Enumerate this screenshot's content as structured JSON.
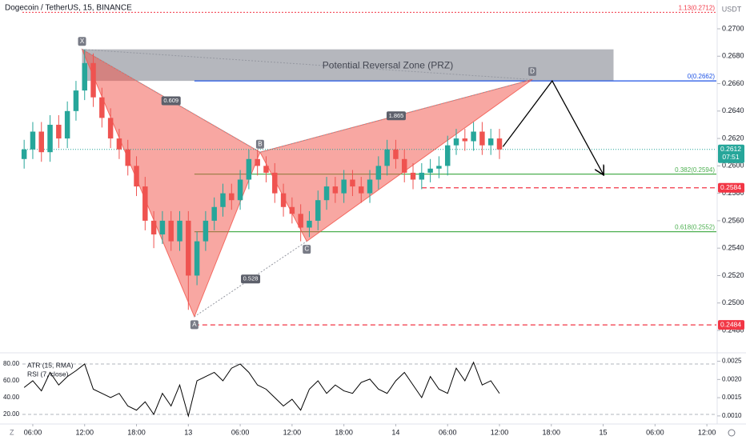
{
  "chart_data": {
    "type": "candlestick",
    "title": "Dogecoin / TetherUS, 15, BINANCE",
    "currency": "USDT",
    "xlim": [
      4.8,
      85.1
    ],
    "ylim": [
      0.2473,
      0.2721
    ],
    "xticks": [
      {
        "value": 6,
        "label": "06:00"
      },
      {
        "value": 12,
        "label": "12:00"
      },
      {
        "value": 18,
        "label": "18:00"
      },
      {
        "value": 24,
        "label": "13"
      },
      {
        "value": 30,
        "label": "06:00"
      },
      {
        "value": 36,
        "label": "12:00"
      },
      {
        "value": 42,
        "label": "18:00"
      },
      {
        "value": 48,
        "label": "14"
      },
      {
        "value": 54,
        "label": "06:00"
      },
      {
        "value": 60,
        "label": "12:00"
      },
      {
        "value": 66,
        "label": "18:00"
      },
      {
        "value": 72,
        "label": "15"
      },
      {
        "value": 78,
        "label": "06:00"
      },
      {
        "value": 84,
        "label": "12:00"
      }
    ],
    "yticks": [
      {
        "value": 0.248,
        "label": "0.2480"
      },
      {
        "value": 0.25,
        "label": "0.2500"
      },
      {
        "value": 0.252,
        "label": "0.2520"
      },
      {
        "value": 0.254,
        "label": "0.2540"
      },
      {
        "value": 0.256,
        "label": "0.2560"
      },
      {
        "value": 0.258,
        "label": "0.2580"
      },
      {
        "value": 0.26,
        "label": "0.2600"
      },
      {
        "value": 0.262,
        "label": "0.2620"
      },
      {
        "value": 0.264,
        "label": "0.2640"
      },
      {
        "value": 0.266,
        "label": "0.2660"
      },
      {
        "value": 0.268,
        "label": "0.2680"
      },
      {
        "value": 0.27,
        "label": "0.2700"
      }
    ],
    "up_color": "#26a69a",
    "down_color": "#ef5350",
    "candles": {
      "x": [
        5,
        6,
        7,
        8,
        9,
        10,
        11,
        12,
        13,
        14,
        15,
        16,
        17,
        18,
        19,
        20,
        21,
        22,
        23,
        24,
        25,
        26,
        27,
        28,
        29,
        30,
        31,
        32,
        33,
        34,
        35,
        36,
        37,
        38,
        39,
        40,
        41,
        42,
        43,
        44,
        45,
        46,
        47,
        48,
        49,
        50,
        51,
        52,
        53,
        54,
        55,
        56,
        57,
        58,
        59,
        60
      ],
      "open": [
        0.2605,
        0.2612,
        0.2625,
        0.261,
        0.263,
        0.262,
        0.264,
        0.2655,
        0.2675,
        0.265,
        0.2635,
        0.262,
        0.2612,
        0.26,
        0.2585,
        0.256,
        0.255,
        0.256,
        0.2545,
        0.256,
        0.252,
        0.2545,
        0.256,
        0.257,
        0.258,
        0.2575,
        0.259,
        0.2605,
        0.26,
        0.2595,
        0.258,
        0.257,
        0.2565,
        0.2555,
        0.256,
        0.2575,
        0.2585,
        0.258,
        0.259,
        0.2585,
        0.258,
        0.259,
        0.26,
        0.2612,
        0.2605,
        0.2595,
        0.259,
        0.2595,
        0.2598,
        0.26,
        0.2615,
        0.262,
        0.2618,
        0.2625,
        0.2615,
        0.262
      ],
      "high": [
        0.2619,
        0.2632,
        0.2632,
        0.2637,
        0.2637,
        0.2647,
        0.2662,
        0.2685,
        0.2682,
        0.2657,
        0.2642,
        0.2627,
        0.2619,
        0.2607,
        0.2592,
        0.2567,
        0.2567,
        0.2567,
        0.2567,
        0.2567,
        0.2552,
        0.2567,
        0.2577,
        0.2587,
        0.2587,
        0.2597,
        0.2612,
        0.2612,
        0.2607,
        0.2602,
        0.2587,
        0.2577,
        0.2572,
        0.2567,
        0.2582,
        0.2592,
        0.2592,
        0.2597,
        0.2597,
        0.2592,
        0.2597,
        0.2607,
        0.2619,
        0.2619,
        0.2612,
        0.2602,
        0.2602,
        0.2605,
        0.2607,
        0.2622,
        0.2627,
        0.2627,
        0.2632,
        0.2632,
        0.2627,
        0.2627
      ],
      "low": [
        0.2598,
        0.2605,
        0.2603,
        0.2603,
        0.2613,
        0.2613,
        0.2633,
        0.2648,
        0.2643,
        0.2628,
        0.2613,
        0.2605,
        0.2593,
        0.2578,
        0.2553,
        0.254,
        0.2543,
        0.2538,
        0.2538,
        0.2495,
        0.2513,
        0.2538,
        0.2553,
        0.2563,
        0.2568,
        0.2568,
        0.2583,
        0.2593,
        0.2588,
        0.2573,
        0.2563,
        0.2558,
        0.2545,
        0.2548,
        0.2553,
        0.2568,
        0.2573,
        0.2573,
        0.2578,
        0.2573,
        0.2573,
        0.2583,
        0.2593,
        0.2598,
        0.2588,
        0.2583,
        0.2583,
        0.2588,
        0.2591,
        0.2593,
        0.2608,
        0.2611,
        0.2611,
        0.2608,
        0.2608,
        0.2605
      ],
      "close": [
        0.2612,
        0.2625,
        0.261,
        0.263,
        0.262,
        0.264,
        0.2655,
        0.2675,
        0.265,
        0.2635,
        0.262,
        0.2612,
        0.26,
        0.2585,
        0.256,
        0.255,
        0.256,
        0.2545,
        0.256,
        0.252,
        0.2545,
        0.256,
        0.257,
        0.258,
        0.2575,
        0.259,
        0.2605,
        0.26,
        0.2595,
        0.258,
        0.257,
        0.2565,
        0.2555,
        0.256,
        0.2575,
        0.2585,
        0.258,
        0.259,
        0.2585,
        0.258,
        0.259,
        0.26,
        0.2612,
        0.2605,
        0.2595,
        0.259,
        0.2595,
        0.2598,
        0.26,
        0.2615,
        0.262,
        0.2618,
        0.2625,
        0.2615,
        0.262,
        0.2612
      ]
    },
    "pattern": {
      "labels": [
        "X",
        "A",
        "B",
        "C",
        "D"
      ],
      "x": [
        11.7,
        24.7,
        32.3,
        37.7,
        63.8
      ],
      "y": [
        0.2685,
        0.249,
        0.261,
        0.2545,
        0.2663
      ],
      "ratios": [
        "0.609",
        "0.528",
        "1.865"
      ]
    },
    "prz": {
      "label": "Potential Reversal Zone (PRZ)",
      "x": [
        11.7,
        73.2
      ],
      "y": [
        0.2662,
        0.2685
      ]
    },
    "fib_levels": [
      {
        "label": "1.13(0.2712)",
        "value": 0.2712,
        "color": "#f23645"
      },
      {
        "label": "0(0.2662)",
        "value": 0.2662,
        "color": "#1e53e5"
      },
      {
        "label": "0.382(0.2594)",
        "value": 0.2594,
        "color": "#4caf50"
      },
      {
        "label": "0.618(0.2552)",
        "value": 0.2552,
        "color": "#4caf50"
      }
    ],
    "stop_levels": [
      {
        "value": 0.2584,
        "color": "#f23645"
      },
      {
        "value": 0.2484,
        "color": "#f23645"
      }
    ],
    "last_price": {
      "value": 0.2612,
      "countdown": "07:51",
      "color": "#26a69a"
    },
    "projection": {
      "x": [
        60.4,
        66.1,
        72.0
      ],
      "y": [
        0.2614,
        0.2662,
        0.2594
      ]
    },
    "indicator": {
      "atr_label": "ATR (15, RMA)",
      "rsi_label": "RSI (7, close)",
      "ylim": [
        9.5,
        87.6
      ],
      "yticks": [
        {
          "value": 80,
          "label": "80.00"
        },
        {
          "value": 60,
          "label": "60.00"
        },
        {
          "value": 40,
          "label": "40.00"
        },
        {
          "value": 20,
          "label": "20.00"
        }
      ],
      "y2lim": [
        0.0008,
        0.0026
      ],
      "y2ticks": [
        0.0025,
        {
          "value": 0.002,
          "label": "0.0020"
        },
        0.0015,
        {
          "value": 0.001,
          "label": "0.0010"
        }
      ],
      "rsi": [
        52,
        60,
        48,
        70,
        55,
        65,
        72,
        80,
        50,
        45,
        40,
        45,
        30,
        25,
        35,
        20,
        45,
        30,
        55,
        18,
        60,
        65,
        70,
        60,
        75,
        80,
        70,
        55,
        50,
        40,
        30,
        38,
        25,
        50,
        60,
        45,
        55,
        48,
        45,
        58,
        62,
        50,
        45,
        60,
        70,
        55,
        40,
        65,
        50,
        45,
        75,
        60,
        82,
        55,
        60,
        45
      ]
    }
  }
}
